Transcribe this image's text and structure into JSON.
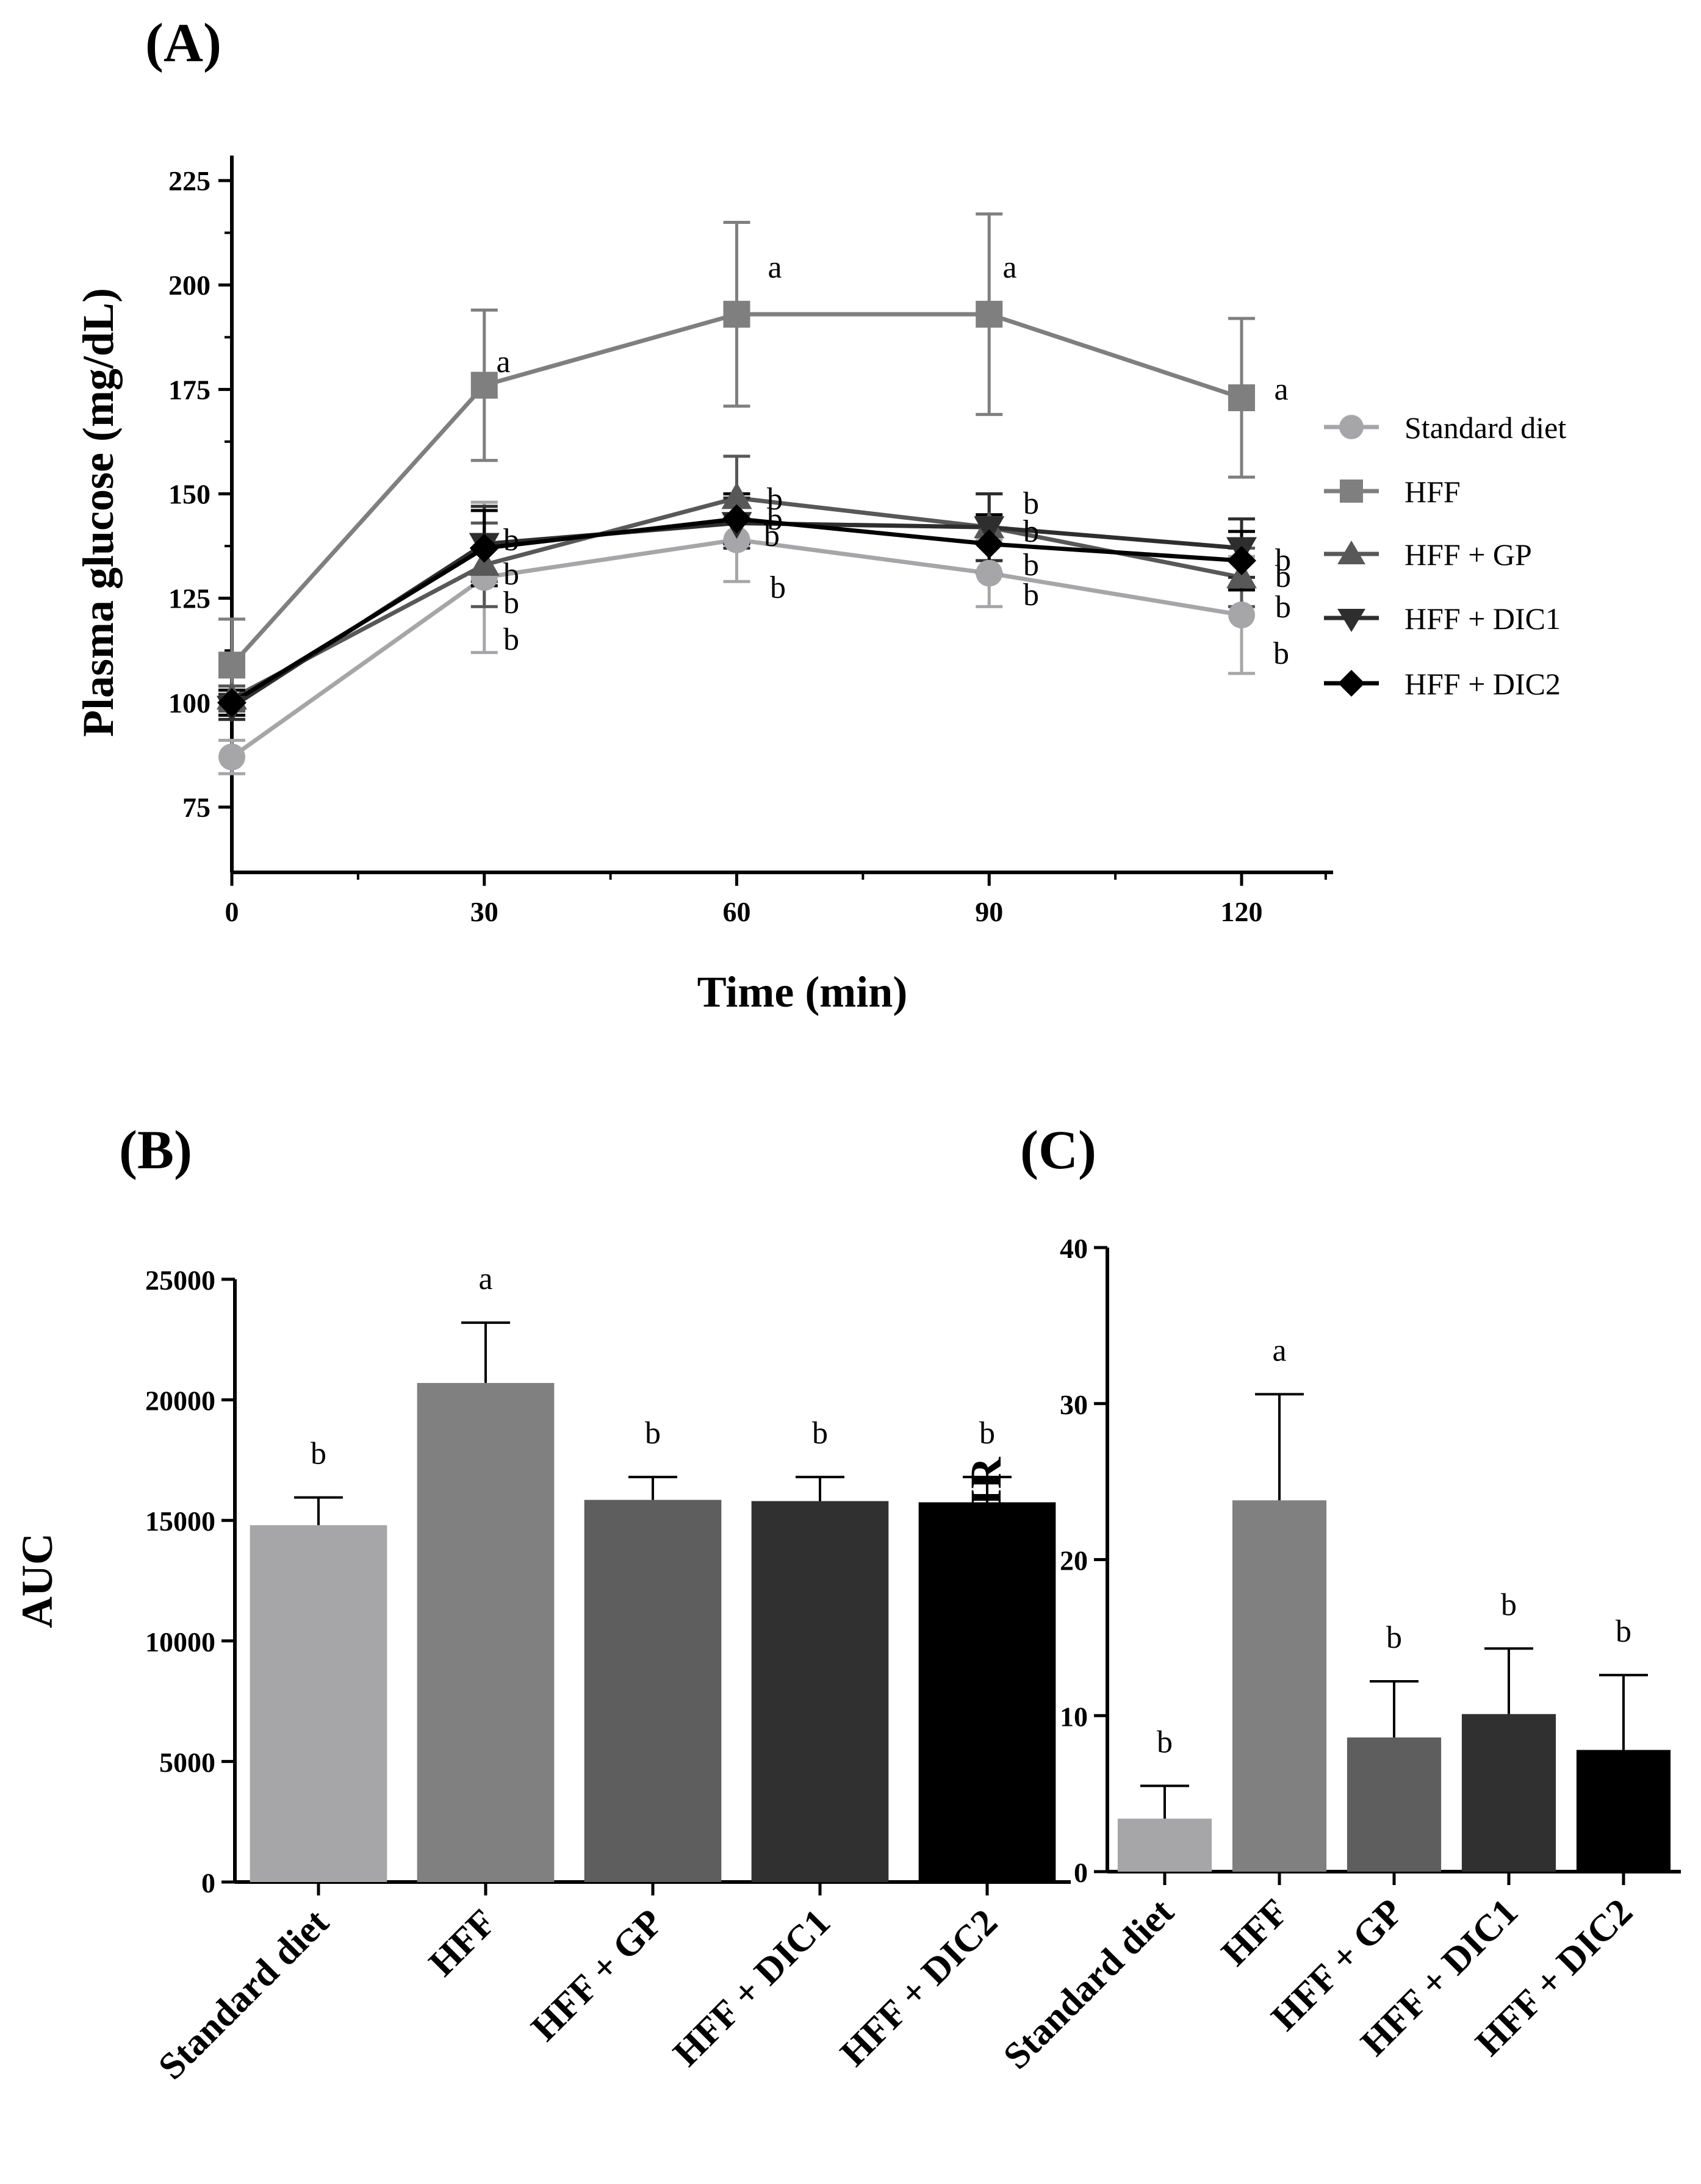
{
  "chart_data": [
    {
      "panel": "(A)",
      "type": "line",
      "xlabel": "Time (min)",
      "ylabel": "Plasma glucose (mg/dL)",
      "x": [
        0,
        30,
        60,
        90,
        120
      ],
      "xticks": [
        "0",
        "30",
        "60",
        "90",
        "120"
      ],
      "yticks": [
        "75",
        "100",
        "125",
        "150",
        "175",
        "200",
        "225"
      ],
      "xlim": [
        0,
        130
      ],
      "ylim": [
        62,
        230
      ],
      "grid": false,
      "legend_position": "right",
      "series": [
        {
          "name": "Standard diet",
          "marker": "circle",
          "color": "#a6a6a8",
          "values": [
            87,
            130,
            139,
            131,
            121
          ],
          "errors": [
            4,
            18,
            10,
            8,
            14
          ],
          "labels": [
            "",
            "b",
            "b",
            "b",
            "b"
          ]
        },
        {
          "name": "HFF",
          "marker": "square",
          "color": "#7f7f7f",
          "values": [
            109,
            176,
            193,
            193,
            173
          ],
          "errors": [
            11,
            18,
            22,
            24,
            19
          ],
          "labels": [
            "",
            "a",
            "a",
            "a",
            "a"
          ]
        },
        {
          "name": "HFF + GP",
          "marker": "triangle-up",
          "color": "#585858",
          "values": [
            101,
            133,
            149,
            142,
            130
          ],
          "errors": [
            3,
            10,
            10,
            8,
            7
          ],
          "labels": [
            "",
            "b",
            "b",
            "b",
            "b"
          ]
        },
        {
          "name": "HFF + DIC1",
          "marker": "triangle-down",
          "color": "#2e2e2e",
          "values": [
            99,
            138,
            143,
            142,
            137
          ],
          "errors": [
            3,
            9,
            6,
            8,
            7
          ],
          "labels": [
            "",
            "b",
            "b",
            "b",
            "b"
          ]
        },
        {
          "name": "HFF + DIC2",
          "marker": "diamond",
          "color": "#000000",
          "values": [
            100,
            137,
            144,
            138,
            134
          ],
          "errors": [
            3,
            9,
            6,
            7,
            7
          ],
          "labels": [
            "",
            "b",
            "b",
            "b",
            "b"
          ]
        }
      ]
    },
    {
      "panel": "(B)",
      "type": "bar",
      "xlabel": "",
      "ylabel": "AUC",
      "categories": [
        "Standard diet",
        "HFF",
        "HFF + GP",
        "HFF + DIC1",
        "HFF + DIC2"
      ],
      "values": [
        14800,
        20700,
        15850,
        15800,
        15750
      ],
      "errors": [
        1150,
        2500,
        950,
        1000,
        1050
      ],
      "labels": [
        "b",
        "a",
        "b",
        "b",
        "b"
      ],
      "colors": [
        "#a6a6a8",
        "#808080",
        "#5e5e5e",
        "#303030",
        "#000000"
      ],
      "yticks": [
        "0",
        "5000",
        "10000",
        "15000",
        "20000",
        "25000"
      ],
      "ylim": [
        0,
        25000
      ]
    },
    {
      "panel": "(C)",
      "type": "bar",
      "xlabel": "",
      "ylabel": "HOMA-IR",
      "categories": [
        "Standard diet",
        "HFF",
        "HFF + GP",
        "HFF + DIC1",
        "HFF + DIC2"
      ],
      "values": [
        3.4,
        23.8,
        8.6,
        10.1,
        7.8
      ],
      "errors": [
        2.1,
        6.8,
        3.6,
        4.2,
        4.8
      ],
      "labels": [
        "b",
        "a",
        "b",
        "b",
        "b"
      ],
      "colors": [
        "#a6a6a8",
        "#808080",
        "#5e5e5e",
        "#303030",
        "#000000"
      ],
      "yticks": [
        "0",
        "10",
        "20",
        "30",
        "40"
      ],
      "ylim": [
        0,
        40
      ]
    }
  ]
}
